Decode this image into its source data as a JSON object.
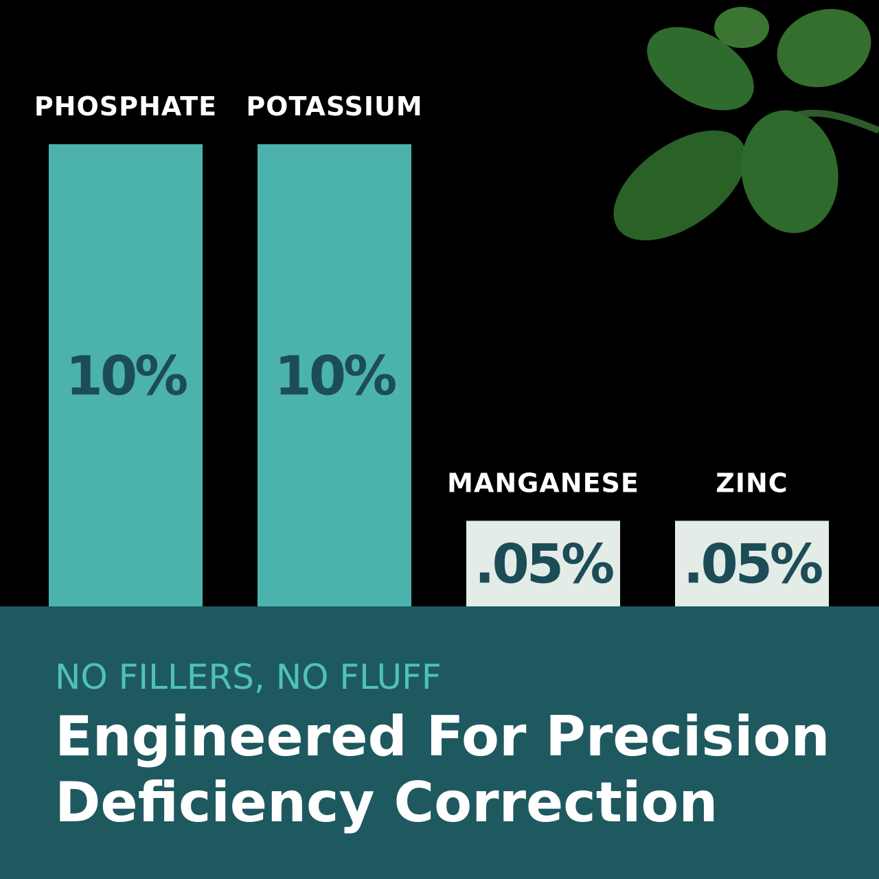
{
  "chart_data": {
    "type": "bar",
    "categories": [
      "PHOSPHATE",
      "POTASSIUM",
      "MANGANESE",
      "ZINC"
    ],
    "values": [
      10,
      10,
      0.05,
      0.05
    ],
    "value_labels": [
      "10%",
      "10%",
      ".05%",
      ".05%"
    ],
    "colors": [
      "#4bb3ac",
      "#4bb3ac",
      "#e3ece7",
      "#e3ece7"
    ],
    "log_scale": true,
    "ylim": [
      0.015,
      10
    ]
  },
  "banner": {
    "kicker": "NO FILLERS, NO FLUFF",
    "headline": [
      "Engineered For Precision",
      "Deficiency Correction"
    ]
  }
}
